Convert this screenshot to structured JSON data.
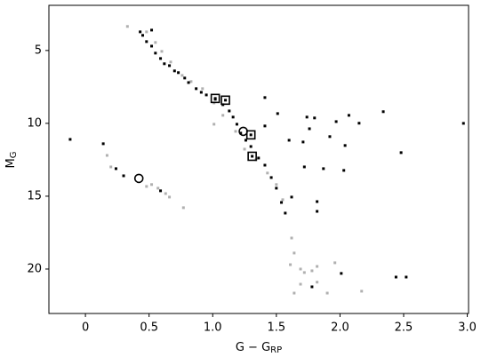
{
  "chart_data": {
    "type": "scatter",
    "xlabel": {
      "main": "G − G",
      "sub": "RP"
    },
    "ylabel": {
      "main": "M",
      "sub": "G"
    },
    "xlim": [
      -0.287,
      3.01
    ],
    "ylim": [
      1.9,
      23.05
    ],
    "y_inverted": true,
    "xticks": [
      {
        "value": 0,
        "label": "0"
      },
      0.5,
      {
        "value": 1,
        "label": "1.0"
      },
      1.5,
      {
        "value": 2,
        "label": "2.0"
      },
      2.5,
      {
        "value": 3,
        "label": "3.0"
      }
    ],
    "yticks": [
      5,
      10,
      15,
      20
    ],
    "series": [
      {
        "color": "#b0b0b0",
        "marker": "point",
        "x": [
          0.33,
          0.48,
          0.55,
          0.6,
          0.67,
          0.76,
          0.83,
          0.92,
          1.01,
          1.01,
          1.08,
          1.18,
          1.25,
          1.34,
          1.43,
          1.5,
          1.55,
          1.62,
          1.64,
          1.61,
          1.69,
          1.72,
          1.78,
          1.82,
          1.96,
          1.82,
          1.64,
          1.9,
          2.17,
          1.69,
          0.17,
          0.2,
          0.52,
          0.57,
          0.63,
          0.66,
          0.77,
          0.48
        ],
        "values": [
          3.35,
          3.72,
          4.45,
          5.06,
          5.79,
          6.71,
          7.13,
          7.62,
          8.6,
          10.06,
          9.45,
          10.55,
          11.77,
          12.5,
          13.41,
          14.2,
          15.24,
          17.87,
          18.9,
          19.7,
          20.0,
          20.24,
          20.12,
          19.82,
          19.57,
          20.9,
          21.65,
          21.65,
          21.52,
          21.04,
          12.2,
          12.99,
          14.2,
          14.45,
          14.82,
          15.06,
          15.79,
          14.33
        ]
      },
      {
        "color": "#000000",
        "marker": "point",
        "x": [
          0.43,
          0.45,
          0.52,
          0.48,
          0.52,
          0.55,
          0.59,
          0.62,
          0.66,
          0.7,
          0.73,
          0.78,
          0.81,
          0.87,
          0.91,
          0.95,
          1.02,
          1.08,
          1.13,
          1.16,
          1.19,
          1.22,
          1.26,
          1.3,
          1.36,
          1.41,
          1.46,
          1.5,
          1.54,
          1.57,
          1.41,
          1.41,
          1.51,
          1.6,
          1.74,
          1.76,
          1.8,
          1.71,
          1.97,
          2.07,
          2.15,
          2.34,
          1.92,
          2.04,
          2.48,
          2.97,
          1.72,
          1.87,
          2.03,
          1.82,
          1.82,
          1.62,
          2.01,
          2.44,
          2.52,
          1.78,
          -0.12,
          0.14,
          0.24,
          0.3,
          0.59
        ],
        "values": [
          3.72,
          3.96,
          3.6,
          4.39,
          4.7,
          5.18,
          5.55,
          5.91,
          6.04,
          6.4,
          6.52,
          6.89,
          7.2,
          7.62,
          7.87,
          8.05,
          8.35,
          8.72,
          9.15,
          9.57,
          10.06,
          10.67,
          11.16,
          11.59,
          12.38,
          12.87,
          13.72,
          14.45,
          15.43,
          16.16,
          8.23,
          10.18,
          9.33,
          11.16,
          9.57,
          10.37,
          9.63,
          11.28,
          9.88,
          9.45,
          9.99,
          9.2,
          10.91,
          11.52,
          12.01,
          10.0,
          12.99,
          13.11,
          13.23,
          15.37,
          16.04,
          15.06,
          20.3,
          20.55,
          20.55,
          21.22,
          11.1,
          11.4,
          13.11,
          13.6,
          14.63
        ]
      },
      {
        "color": "#000000",
        "marker": "square",
        "x": [
          1.02,
          1.1,
          1.3,
          1.31
        ],
        "values": [
          8.29,
          8.41,
          10.79,
          12.26
        ]
      },
      {
        "color": "#000000",
        "marker": "circle",
        "x": [
          1.24,
          0.42
        ],
        "values": [
          10.55,
          13.78
        ]
      }
    ]
  }
}
